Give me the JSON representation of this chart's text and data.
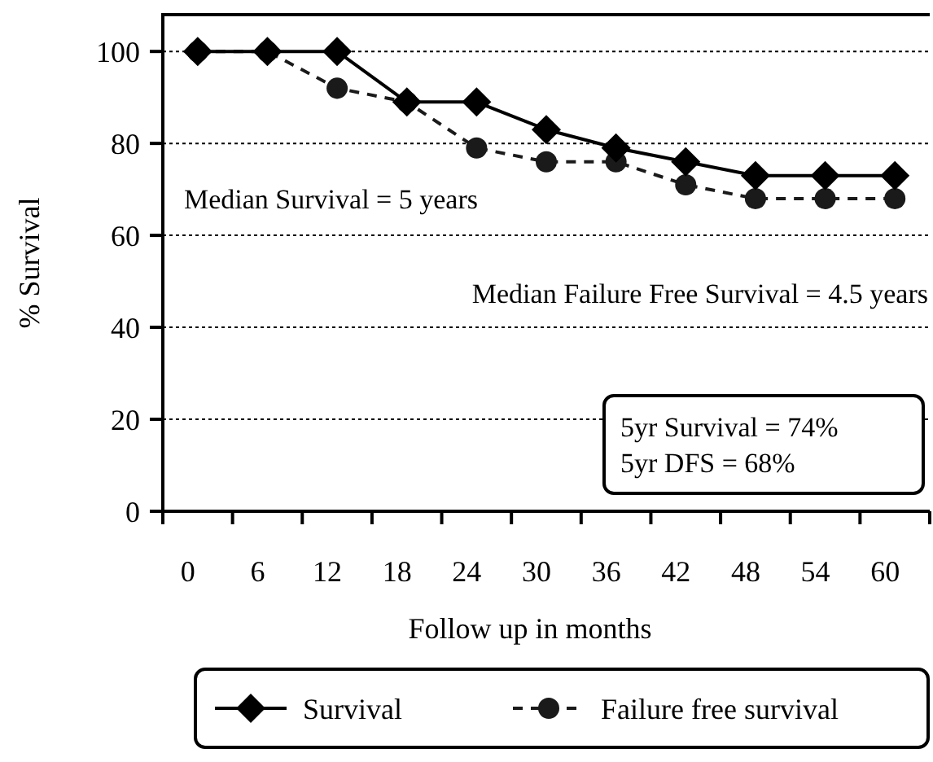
{
  "chart_data": {
    "type": "line",
    "xlabel": "Follow up in months",
    "ylabel": "% Survival",
    "categories": [
      "0",
      "6",
      "12",
      "18",
      "24",
      "30",
      "36",
      "42",
      "48",
      "54",
      "60"
    ],
    "ylim": [
      0,
      108
    ],
    "yticks": [
      0,
      20,
      40,
      60,
      80,
      100
    ],
    "grid": "y",
    "legend": "bottom",
    "series": [
      {
        "name": "Survival",
        "color": "#000000",
        "marker": "diamond",
        "line_style": "solid",
        "values": [
          100,
          100,
          100,
          89,
          89,
          83,
          79,
          76,
          73,
          73,
          73
        ]
      },
      {
        "name": "Failure free survival",
        "color": "#1a1a1a",
        "marker": "circle",
        "line_style": "dashed",
        "values": [
          100,
          100,
          92,
          89,
          79,
          76,
          76,
          71,
          68,
          68,
          68
        ]
      }
    ],
    "annotations": [
      "Median Survival = 5 years",
      "Median Failure Free Survival = 4.5 years",
      "5yr Survival = 74%",
      "5yr DFS = 68%"
    ]
  }
}
